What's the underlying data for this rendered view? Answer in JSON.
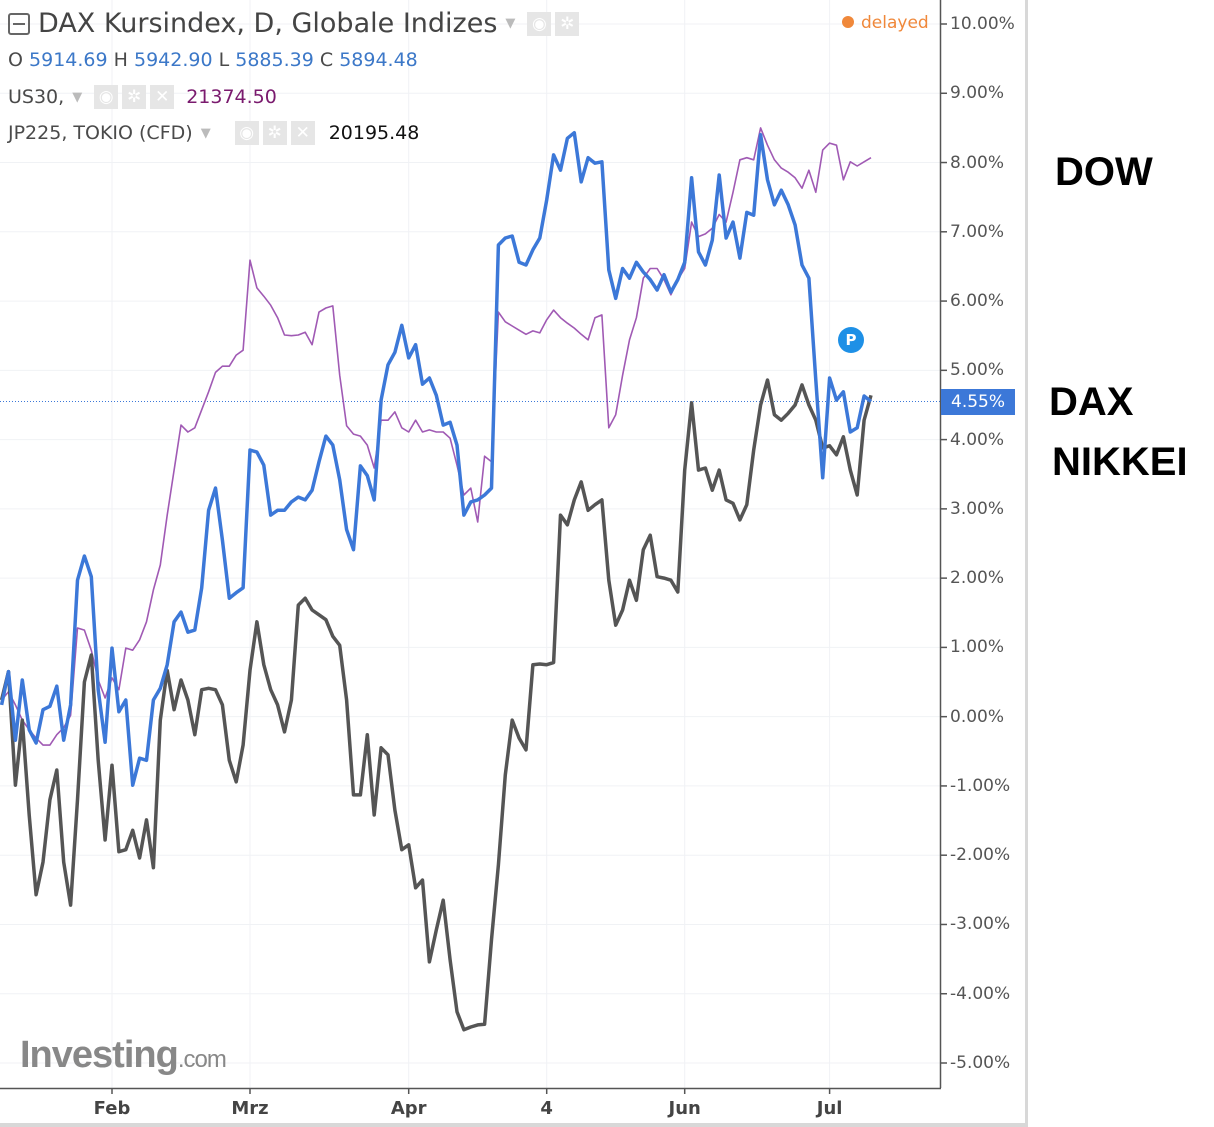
{
  "header": {
    "title": "DAX Kursindex, D, Globale Indizes",
    "ohlc": {
      "o_label": "O",
      "o": "5914.69",
      "h_label": "H",
      "h": "5942.90",
      "l_label": "L",
      "l": "5885.39",
      "c_label": "C",
      "c": "5894.48"
    },
    "comparisons": [
      {
        "symbol": "US30,",
        "value": "21374.50",
        "color": "#7a1a6e"
      },
      {
        "symbol": "JP225, TOKIO (CFD)",
        "value": "20195.48",
        "color": "#111111"
      }
    ],
    "status": "delayed",
    "status_color": "#f0883a"
  },
  "price_tag": "4.55%",
  "badge": "P",
  "logo": {
    "main": "Investing",
    "suffix": ".com"
  },
  "side_labels": [
    {
      "text": "DOW",
      "color": "#a04aaa"
    },
    {
      "text": "DAX",
      "color": "#3a4ec6"
    },
    {
      "text": "NIKKEI",
      "color": "#111111"
    }
  ],
  "chart_data": {
    "type": "line",
    "title": "",
    "xlabel": "",
    "ylabel": "",
    "ylim": [
      -5,
      10
    ],
    "y_ticks": [
      "10.00%",
      "9.00%",
      "8.00%",
      "7.00%",
      "6.00%",
      "5.00%",
      "4.00%",
      "3.00%",
      "2.00%",
      "1.00%",
      "0.00%",
      "-1.00%",
      "-2.00%",
      "-3.00%",
      "-4.00%",
      "-5.00%"
    ],
    "x_ticks": [
      {
        "label": "Feb",
        "date": "2017-02-01"
      },
      {
        "label": "Mrz",
        "date": "2017-03-01"
      },
      {
        "label": "Apr",
        "date": "2017-04-03"
      },
      {
        "label": "4",
        "date": "2017-05-04"
      },
      {
        "label": "Jun",
        "date": "2017-06-01"
      },
      {
        "label": "Jul",
        "date": "2017-07-03"
      }
    ],
    "grid": true,
    "last_value_line": 4.55,
    "x": [
      "2017-01-10",
      "2017-01-11",
      "2017-01-12",
      "2017-01-13",
      "2017-01-16",
      "2017-01-17",
      "2017-01-18",
      "2017-01-19",
      "2017-01-20",
      "2017-01-23",
      "2017-01-24",
      "2017-01-25",
      "2017-01-26",
      "2017-01-27",
      "2017-01-30",
      "2017-01-31",
      "2017-02-01",
      "2017-02-02",
      "2017-02-03",
      "2017-02-06",
      "2017-02-07",
      "2017-02-08",
      "2017-02-09",
      "2017-02-10",
      "2017-02-13",
      "2017-02-14",
      "2017-02-15",
      "2017-02-16",
      "2017-02-17",
      "2017-02-20",
      "2017-02-21",
      "2017-02-22",
      "2017-02-23",
      "2017-02-24",
      "2017-02-27",
      "2017-02-28",
      "2017-03-01",
      "2017-03-02",
      "2017-03-03",
      "2017-03-06",
      "2017-03-07",
      "2017-03-08",
      "2017-03-09",
      "2017-03-10",
      "2017-03-13",
      "2017-03-14",
      "2017-03-15",
      "2017-03-16",
      "2017-03-17",
      "2017-03-20",
      "2017-03-21",
      "2017-03-22",
      "2017-03-23",
      "2017-03-24",
      "2017-03-27",
      "2017-03-28",
      "2017-03-29",
      "2017-03-30",
      "2017-03-31",
      "2017-04-03",
      "2017-04-04",
      "2017-04-05",
      "2017-04-06",
      "2017-04-07",
      "2017-04-10",
      "2017-04-11",
      "2017-04-12",
      "2017-04-13",
      "2017-04-18",
      "2017-04-19",
      "2017-04-20",
      "2017-04-21",
      "2017-04-24",
      "2017-04-25",
      "2017-04-26",
      "2017-04-27",
      "2017-04-28",
      "2017-05-02",
      "2017-05-03",
      "2017-05-04",
      "2017-05-05",
      "2017-05-08",
      "2017-05-09",
      "2017-05-10",
      "2017-05-11",
      "2017-05-12",
      "2017-05-15",
      "2017-05-16",
      "2017-05-17",
      "2017-05-18",
      "2017-05-19",
      "2017-05-22",
      "2017-05-23",
      "2017-05-24",
      "2017-05-25",
      "2017-05-26",
      "2017-05-29",
      "2017-05-30",
      "2017-05-31",
      "2017-06-01",
      "2017-06-02",
      "2017-06-06",
      "2017-06-07",
      "2017-06-08",
      "2017-06-09",
      "2017-06-12",
      "2017-06-13",
      "2017-06-14",
      "2017-06-15",
      "2017-06-16",
      "2017-06-19",
      "2017-06-20",
      "2017-06-21",
      "2017-06-22",
      "2017-06-23",
      "2017-06-26",
      "2017-06-27",
      "2017-06-28",
      "2017-06-29",
      "2017-06-30",
      "2017-07-03",
      "2017-07-04",
      "2017-07-05",
      "2017-07-06",
      "2017-07-07",
      "2017-07-10",
      "2017-07-11"
    ],
    "series": [
      {
        "name": "DOW",
        "color": "#a05ab4",
        "width": 1.6,
        "values": [
          0.24,
          0.36,
          0.17,
          -0.05,
          -0.19,
          -0.31,
          -0.41,
          -0.41,
          -0.26,
          -0.16,
          0.02,
          1.28,
          1.25,
          0.96,
          0.53,
          0.27,
          0.56,
          0.39,
          0.99,
          0.96,
          1.11,
          1.37,
          1.83,
          2.19,
          2.91,
          3.56,
          4.21,
          4.11,
          4.17,
          4.43,
          4.69,
          4.97,
          5.06,
          5.06,
          5.22,
          5.29,
          6.59,
          6.19,
          6.07,
          5.94,
          5.76,
          5.51,
          5.5,
          5.51,
          5.55,
          5.37,
          5.84,
          5.9,
          5.93,
          4.93,
          4.2,
          4.08,
          4.05,
          3.92,
          3.59,
          4.28,
          4.28,
          4.4,
          4.17,
          4.11,
          4.28,
          4.11,
          4.14,
          4.11,
          4.11,
          4.02,
          3.63,
          3.2,
          3.3,
          2.81,
          3.76,
          3.68,
          5.84,
          5.7,
          5.64,
          5.58,
          5.52,
          5.57,
          5.54,
          5.73,
          5.87,
          5.76,
          5.68,
          5.61,
          5.52,
          5.44,
          5.76,
          5.8,
          4.17,
          4.36,
          4.93,
          5.44,
          5.76,
          6.33,
          6.47,
          6.47,
          6.31,
          6.09,
          6.31,
          6.47,
          7.14,
          6.93,
          6.97,
          7.05,
          7.25,
          7.14,
          7.57,
          8.04,
          8.07,
          8.04,
          8.5,
          8.25,
          8.04,
          7.92,
          7.86,
          7.78,
          7.63,
          7.89,
          7.57,
          8.18,
          8.28,
          8.25,
          7.75,
          8.01,
          7.95,
          8.01,
          8.07
        ]
      },
      {
        "name": "NIKKEI",
        "color": "#555555",
        "width": 3.5,
        "values": [
          0.24,
          0.65,
          -0.99,
          -0.05,
          -1.42,
          -2.57,
          -2.1,
          -1.2,
          -0.77,
          -2.1,
          -2.72,
          -1.2,
          0.5,
          0.89,
          -0.63,
          -1.78,
          -0.7,
          -1.95,
          -1.92,
          -1.64,
          -2.04,
          -1.49,
          -2.18,
          -0.05,
          0.67,
          0.1,
          0.53,
          0.24,
          -0.26,
          0.39,
          0.41,
          0.39,
          0.17,
          -0.63,
          -0.94,
          -0.41,
          0.67,
          1.37,
          0.75,
          0.39,
          0.17,
          -0.22,
          0.24,
          1.61,
          1.71,
          1.54,
          1.47,
          1.4,
          1.16,
          1.03,
          0.24,
          -1.13,
          -1.13,
          -0.26,
          -1.42,
          -0.45,
          -0.55,
          -1.35,
          -1.92,
          -1.85,
          -2.47,
          -2.36,
          -3.54,
          -3.08,
          -2.65,
          -3.51,
          -4.26,
          -4.52,
          -4.48,
          -4.45,
          -4.44,
          -3.22,
          -2.14,
          -0.84,
          -0.05,
          -0.31,
          -0.48,
          0.75,
          0.76,
          0.75,
          0.78,
          2.91,
          2.77,
          3.13,
          3.39,
          2.98,
          3.06,
          3.13,
          1.97,
          1.32,
          1.54,
          1.97,
          1.68,
          2.41,
          2.62,
          2.02,
          2.0,
          1.97,
          1.8,
          3.56,
          4.53,
          3.56,
          3.59,
          3.27,
          3.56,
          3.13,
          3.08,
          2.84,
          3.06,
          3.85,
          4.5,
          4.86,
          4.36,
          4.28,
          4.38,
          4.5,
          4.79,
          4.5,
          4.28,
          3.88,
          3.91,
          3.78,
          4.04,
          3.56,
          3.2,
          4.28,
          4.64
        ]
      },
      {
        "name": "DAX",
        "color": "#3c78d8",
        "width": 3.5,
        "values": [
          0.17,
          0.65,
          -0.34,
          0.53,
          -0.19,
          -0.38,
          0.1,
          0.15,
          0.44,
          -0.34,
          0.17,
          1.97,
          2.32,
          2.02,
          0.39,
          -0.37,
          0.99,
          0.07,
          0.24,
          -0.99,
          -0.6,
          -0.63,
          0.24,
          0.41,
          0.75,
          1.37,
          1.51,
          1.22,
          1.25,
          1.86,
          2.98,
          3.3,
          2.55,
          1.71,
          1.79,
          1.86,
          3.85,
          3.82,
          3.63,
          2.91,
          2.98,
          2.98,
          3.1,
          3.17,
          3.13,
          3.27,
          3.68,
          4.05,
          3.92,
          3.42,
          2.7,
          2.41,
          3.62,
          3.48,
          3.13,
          4.57,
          5.08,
          5.26,
          5.65,
          5.18,
          5.37,
          4.8,
          4.89,
          4.64,
          4.21,
          4.25,
          3.92,
          2.91,
          3.1,
          3.13,
          3.2,
          3.3,
          6.81,
          6.91,
          6.94,
          6.56,
          6.52,
          6.74,
          6.91,
          7.46,
          8.11,
          7.89,
          8.35,
          8.43,
          7.72,
          8.07,
          7.99,
          8.01,
          6.45,
          6.04,
          6.47,
          6.33,
          6.56,
          6.42,
          6.31,
          6.16,
          6.38,
          6.13,
          6.31,
          6.56,
          7.78,
          6.71,
          6.52,
          6.88,
          7.82,
          6.91,
          7.14,
          6.62,
          7.28,
          7.24,
          8.4,
          7.75,
          7.39,
          7.6,
          7.39,
          7.1,
          6.52,
          6.33,
          4.86,
          3.45,
          4.89,
          4.57,
          4.69,
          4.11,
          4.17,
          4.63,
          4.55
        ]
      }
    ]
  }
}
